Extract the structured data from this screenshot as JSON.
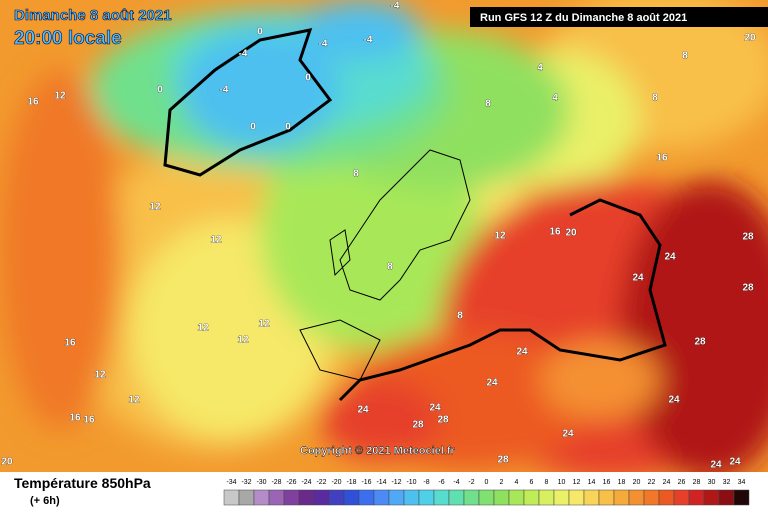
{
  "header": {
    "date": "Dimanche 8 août 2021",
    "time": "20:00 locale",
    "run": "Run GFS 12 Z du Dimanche 8 août 2021"
  },
  "copyright": "Copyright © 2021 Meteociel.fr",
  "footer": {
    "title": "Température 850hPa",
    "lead": "(+ 6h)"
  },
  "scale": {
    "values": [
      -34,
      -32,
      -30,
      -28,
      -26,
      -24,
      -22,
      -20,
      -18,
      -16,
      -14,
      -12,
      -10,
      -8,
      -6,
      -4,
      -2,
      0,
      2,
      4,
      6,
      8,
      10,
      12,
      14,
      16,
      18,
      20,
      22,
      24,
      26,
      28,
      30,
      32,
      34
    ],
    "colors": [
      "#c8c8c8",
      "#a8a8a8",
      "#b48cc8",
      "#9c64b4",
      "#8040a0",
      "#6a2a8c",
      "#5a2aa0",
      "#4040c0",
      "#3050d8",
      "#3c6ef0",
      "#4a8cf4",
      "#50a8f8",
      "#4ec0f0",
      "#50d0e8",
      "#58dcd0",
      "#60e0b0",
      "#70e08c",
      "#80e070",
      "#90e060",
      "#a8e858",
      "#c0ec58",
      "#d8f060",
      "#eaf068",
      "#f6e868",
      "#f8d458",
      "#f8c048",
      "#f6aa3c",
      "#f49030",
      "#f07828",
      "#ec5a24",
      "#e6402a",
      "#d02424",
      "#b01818",
      "#8a0e14",
      "#200808"
    ]
  },
  "map_labels": [
    "-4",
    "-4",
    "-4",
    "-4",
    "0",
    "0",
    "0",
    "0",
    "0",
    "-4",
    "4",
    "4",
    "8",
    "8",
    "8",
    "12",
    "12",
    "12",
    "12",
    "12",
    "12",
    "16",
    "16",
    "16",
    "16",
    "20",
    "20",
    "12",
    "8",
    "8",
    "8",
    "24",
    "24",
    "28",
    "28",
    "28",
    "24",
    "24",
    "24",
    "24",
    "28",
    "28",
    "24",
    "28",
    "24",
    "24",
    "24",
    "20",
    "16",
    "16",
    "12",
    "12"
  ]
}
